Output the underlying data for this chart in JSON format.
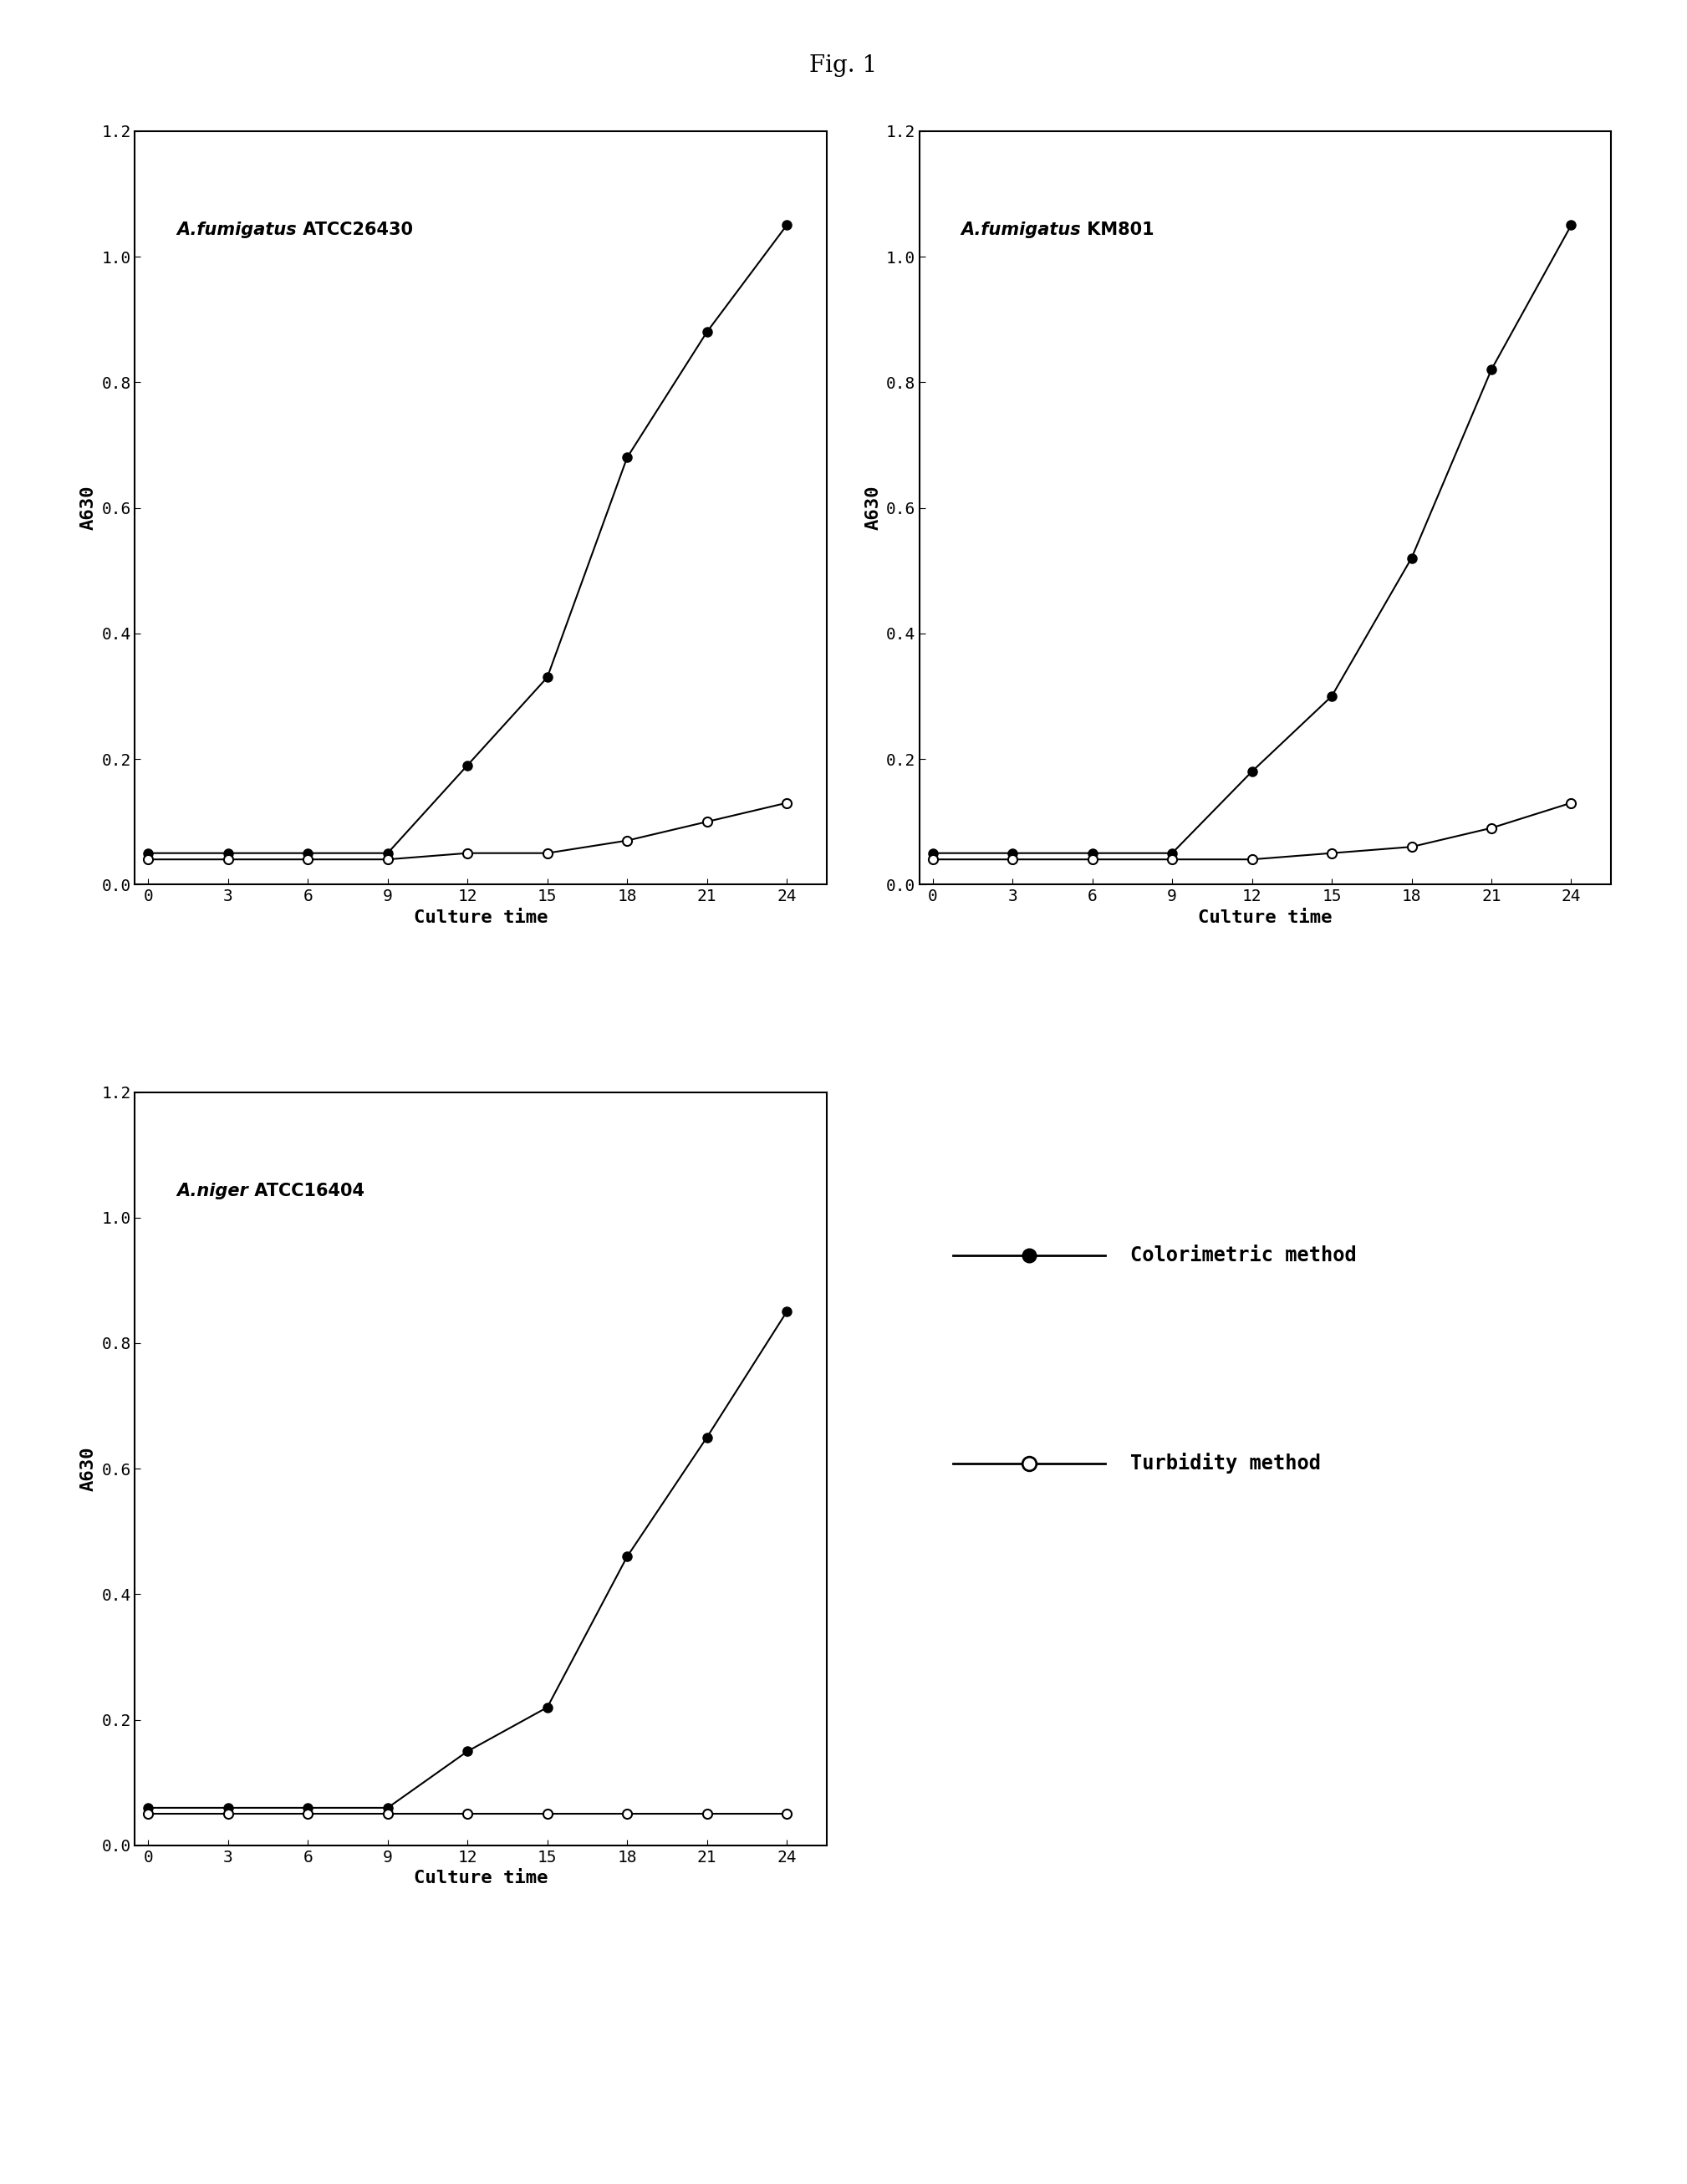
{
  "title": "Fig. 1",
  "x_values": [
    0,
    3,
    6,
    9,
    12,
    15,
    18,
    21,
    24
  ],
  "x_ticks": [
    0,
    3,
    6,
    9,
    12,
    15,
    18,
    21,
    24
  ],
  "xlabel": "Culture time",
  "ylabel": "A630",
  "ylim": [
    0,
    1.2
  ],
  "yticks": [
    0,
    0.2,
    0.4,
    0.6,
    0.8,
    1.0,
    1.2
  ],
  "subplots": [
    {
      "label_italic": "A.fumigatus",
      "label_rest": " ATCC26430",
      "colorimetric": [
        0.05,
        0.05,
        0.05,
        0.05,
        0.19,
        0.33,
        0.68,
        0.88,
        1.05
      ],
      "turbidity": [
        0.04,
        0.04,
        0.04,
        0.04,
        0.05,
        0.05,
        0.07,
        0.1,
        0.13
      ]
    },
    {
      "label_italic": "A.fumigatus",
      "label_rest": " KM801",
      "colorimetric": [
        0.05,
        0.05,
        0.05,
        0.05,
        0.18,
        0.3,
        0.52,
        0.82,
        1.05
      ],
      "turbidity": [
        0.04,
        0.04,
        0.04,
        0.04,
        0.04,
        0.05,
        0.06,
        0.09,
        0.13
      ]
    },
    {
      "label_italic": "A.niger",
      "label_rest": " ATCC16404",
      "colorimetric": [
        0.06,
        0.06,
        0.06,
        0.06,
        0.15,
        0.22,
        0.46,
        0.65,
        0.85
      ],
      "turbidity": [
        0.05,
        0.05,
        0.05,
        0.05,
        0.05,
        0.05,
        0.05,
        0.05,
        0.05
      ]
    }
  ],
  "legend_colorimetric": "Colorimetric method",
  "legend_turbidity": "Turbidity method",
  "bg_color": "#ffffff",
  "line_color": "#000000",
  "title_fontsize": 20,
  "label_fontsize": 15,
  "tick_fontsize": 14,
  "axis_label_fontsize": 16,
  "legend_fontsize": 17
}
